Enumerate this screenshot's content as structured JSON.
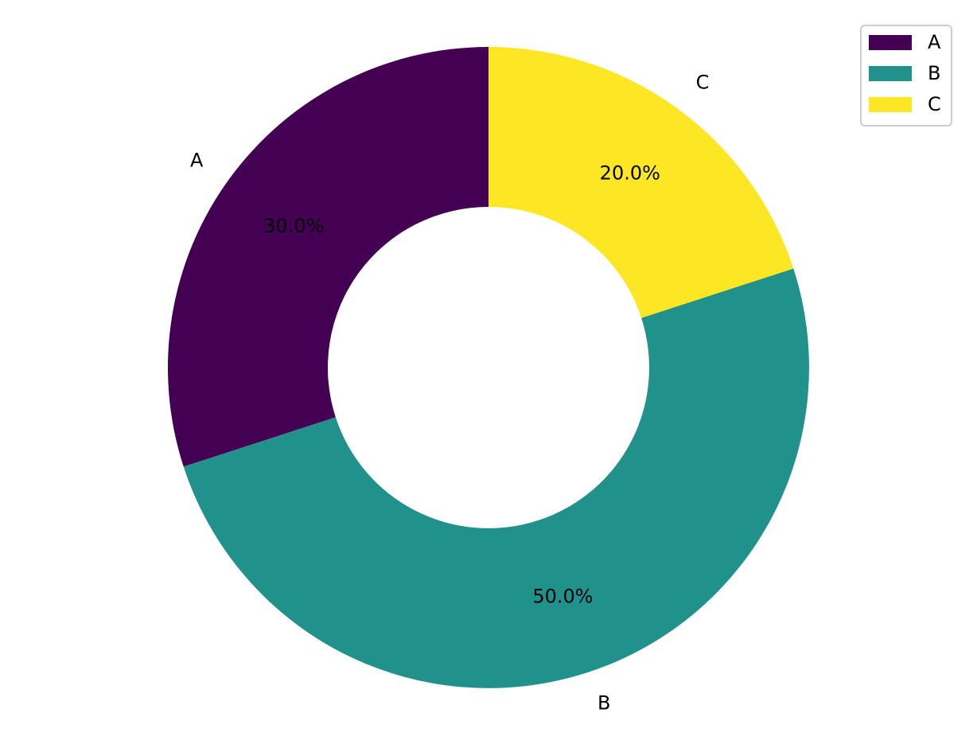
{
  "chart_data": {
    "type": "pie",
    "style": "donut",
    "categories": [
      "A",
      "B",
      "C"
    ],
    "values": [
      30,
      50,
      20
    ],
    "percent_labels": [
      "30.0%",
      "50.0%",
      "20.0%"
    ],
    "colors": [
      "#440154",
      "#21918c",
      "#fde725"
    ],
    "start_angle_deg": 90,
    "direction": "counterclockwise",
    "legend": {
      "placement": "top-right",
      "entries": [
        "A",
        "B",
        "C"
      ]
    }
  }
}
